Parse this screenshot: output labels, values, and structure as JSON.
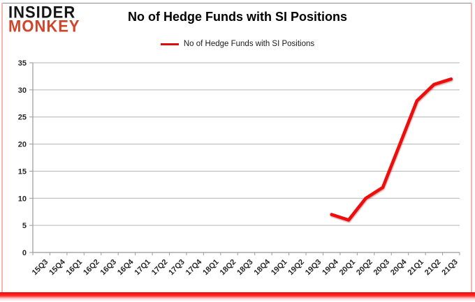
{
  "logo": {
    "line1": "INSIDER",
    "line2": "MONKEY"
  },
  "header": {
    "title": "No of Hedge Funds with SI Positions"
  },
  "legend": {
    "label": "No of Hedge Funds with SI Positions"
  },
  "colors": {
    "series_line": "#ee0a0a",
    "gridline": "#b3b3b3",
    "axis": "#999999",
    "tick_text": "#262626",
    "logo_black": "#151515",
    "logo_red": "#d0442a",
    "frame_pink": "#f5b6b0",
    "frame_red": "#f60909",
    "frame_gray": "#8c8c8c"
  },
  "chart_data": {
    "type": "line",
    "title": "No of Hedge Funds with SI Positions",
    "categories": [
      "15Q3",
      "15Q4",
      "16Q1",
      "16Q2",
      "16Q3",
      "16Q4",
      "17Q1",
      "17Q2",
      "17Q3",
      "17Q4",
      "18Q1",
      "18Q2",
      "18Q3",
      "18Q4",
      "19Q1",
      "19Q2",
      "19Q3",
      "19Q4",
      "20Q1",
      "20Q2",
      "20Q3",
      "20Q4",
      "21Q1",
      "21Q2",
      "21Q3"
    ],
    "series": [
      {
        "name": "No of Hedge Funds with SI Positions",
        "color": "#ee0a0a",
        "values": [
          null,
          null,
          null,
          null,
          null,
          null,
          null,
          null,
          null,
          null,
          null,
          null,
          null,
          null,
          null,
          null,
          null,
          7,
          6,
          10,
          12,
          20,
          28,
          31,
          32
        ]
      }
    ],
    "ylim": [
      0,
      35
    ],
    "yticks": [
      0,
      5,
      10,
      15,
      20,
      25,
      30,
      35
    ],
    "xlabel": "",
    "ylabel": "",
    "grid": "horizontal-only",
    "legend_position": "top-center"
  }
}
